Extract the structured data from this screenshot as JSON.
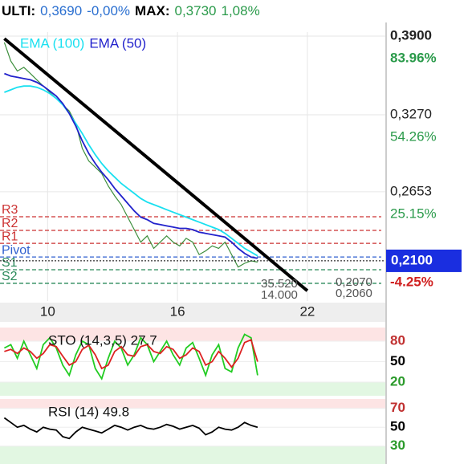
{
  "header": {
    "last_label": "ULTI:",
    "last": "0,3690",
    "last_change": "-0,00%",
    "max_label": "MAX:",
    "max": "0,3730",
    "max_change": "1,08%"
  },
  "chart_data": [
    {
      "type": "line",
      "xlim": [
        7.8,
        25.6
      ],
      "ylim": [
        0.1778,
        0.3932
      ],
      "xticks": [
        10,
        16,
        22
      ],
      "yticks": [
        {
          "value": 0.39,
          "label": "0,3900"
        },
        {
          "value": 0.327,
          "label": "0,3270"
        },
        {
          "value": 0.2653,
          "label": "0,2653"
        }
      ],
      "ytick_pct": [
        "83.96%",
        "54.26%",
        "25.15%"
      ],
      "grid": true,
      "x": [
        8.0,
        8.3,
        8.6,
        8.9,
        9.2,
        9.5,
        9.8,
        10.1,
        10.4,
        10.7,
        11.0,
        11.3,
        11.6,
        11.9,
        12.2,
        12.5,
        12.8,
        13.1,
        13.4,
        13.7,
        14.0,
        14.3,
        14.6,
        14.9,
        15.2,
        15.5,
        15.8,
        16.1,
        16.4,
        16.7,
        17.0,
        17.3,
        17.6,
        17.9,
        18.2,
        18.5,
        18.8,
        19.1,
        19.4,
        19.7
      ],
      "series": [
        {
          "color": "#3d8f3d",
          "values": [
            0.385,
            0.37,
            0.362,
            0.365,
            0.36,
            0.355,
            0.35,
            0.345,
            0.34,
            0.335,
            0.33,
            0.32,
            0.3,
            0.29,
            0.285,
            0.28,
            0.27,
            0.262,
            0.255,
            0.245,
            0.235,
            0.225,
            0.23,
            0.22,
            0.225,
            0.23,
            0.225,
            0.222,
            0.228,
            0.225,
            0.215,
            0.218,
            0.222,
            0.22,
            0.225,
            0.215,
            0.205,
            0.208,
            0.21,
            0.209
          ]
        },
        {
          "name": "EMA (100)",
          "color": "#19e0f0",
          "values": [
            0.345,
            0.347,
            0.349,
            0.35,
            0.35,
            0.349,
            0.347,
            0.344,
            0.34,
            0.335,
            0.328,
            0.32,
            0.312,
            0.303,
            0.295,
            0.288,
            0.282,
            0.277,
            0.272,
            0.268,
            0.264,
            0.26,
            0.257,
            0.255,
            0.253,
            0.251,
            0.249,
            0.247,
            0.245,
            0.243,
            0.241,
            0.239,
            0.237,
            0.235,
            0.232,
            0.228,
            0.224,
            0.22,
            0.217,
            0.214
          ]
        },
        {
          "name": "EMA (50)",
          "color": "#2222cc",
          "values": [
            0.36,
            0.358,
            0.357,
            0.356,
            0.355,
            0.353,
            0.35,
            0.346,
            0.342,
            0.336,
            0.328,
            0.318,
            0.306,
            0.296,
            0.288,
            0.281,
            0.275,
            0.268,
            0.262,
            0.256,
            0.25,
            0.245,
            0.243,
            0.24,
            0.239,
            0.238,
            0.237,
            0.236,
            0.236,
            0.235,
            0.233,
            0.232,
            0.231,
            0.23,
            0.229,
            0.225,
            0.22,
            0.216,
            0.213,
            0.212
          ]
        }
      ],
      "trendline": {
        "x": [
          8.0,
          22.0
        ],
        "values": [
          0.388,
          0.186
        ],
        "color": "#000000"
      },
      "levels": [
        {
          "name": "R3",
          "value": 0.2453,
          "color": "#cc3333"
        },
        {
          "name": "R2",
          "value": 0.2344,
          "color": "#cc3333"
        },
        {
          "name": "R1",
          "value": 0.224,
          "color": "#cc3333"
        },
        {
          "name": "Pivot",
          "value": 0.2131,
          "color": "#2f5fcf"
        },
        {
          "name": "S1",
          "value": 0.2029,
          "color": "#2a8a5a"
        },
        {
          "name": "S2",
          "value": 0.192,
          "color": "#2a8a5a"
        }
      ],
      "last_price": {
        "value": 0.21,
        "label": "0,2100",
        "pct": "-4.25%"
      },
      "annotations": [
        "35.520",
        "0,2070",
        "14.000",
        "0,2060"
      ]
    },
    {
      "type": "line",
      "title": "STO (14,3,5) 27.7",
      "ylim": [
        0,
        100
      ],
      "yticks": [
        80,
        50,
        20
      ],
      "ytick_colors": [
        "#c03030",
        "#000000",
        "#2a9a2a"
      ],
      "zones": [
        {
          "from": 80,
          "to": 100,
          "color": "#fde4e4"
        },
        {
          "from": 0,
          "to": 20,
          "color": "#e2f7e2"
        }
      ],
      "series": [
        {
          "color": "#22cc22",
          "values": [
            70,
            75,
            55,
            80,
            60,
            40,
            75,
            85,
            70,
            45,
            30,
            60,
            80,
            75,
            40,
            25,
            55,
            80,
            70,
            45,
            60,
            85,
            75,
            50,
            65,
            80,
            60,
            45,
            70,
            78,
            55,
            30,
            60,
            75,
            40,
            35,
            70,
            90,
            85,
            30
          ]
        },
        {
          "color": "#dd2222",
          "values": [
            65,
            68,
            62,
            70,
            65,
            55,
            62,
            75,
            72,
            58,
            45,
            50,
            68,
            74,
            60,
            40,
            45,
            65,
            72,
            60,
            58,
            72,
            75,
            65,
            62,
            72,
            68,
            55,
            60,
            70,
            65,
            45,
            50,
            65,
            55,
            42,
            55,
            78,
            82,
            50
          ]
        }
      ]
    },
    {
      "type": "line",
      "title": "RSI (14) 49.8",
      "ylim": [
        11,
        80
      ],
      "yticks": [
        70,
        50,
        30
      ],
      "ytick_colors": [
        "#c03030",
        "#000000",
        "#2a9a2a"
      ],
      "zones": [
        {
          "from": 70,
          "to": 80,
          "color": "#fde4e4"
        },
        {
          "from": 11,
          "to": 30,
          "color": "#e2f7e2"
        }
      ],
      "series": [
        {
          "color": "#000000",
          "values": [
            60,
            55,
            50,
            52,
            48,
            45,
            50,
            48,
            47,
            40,
            38,
            45,
            50,
            48,
            46,
            44,
            48,
            52,
            50,
            47,
            50,
            52,
            49,
            48,
            50,
            53,
            51,
            48,
            50,
            52,
            49,
            42,
            45,
            50,
            48,
            47,
            50,
            55,
            52,
            50
          ]
        }
      ]
    }
  ]
}
